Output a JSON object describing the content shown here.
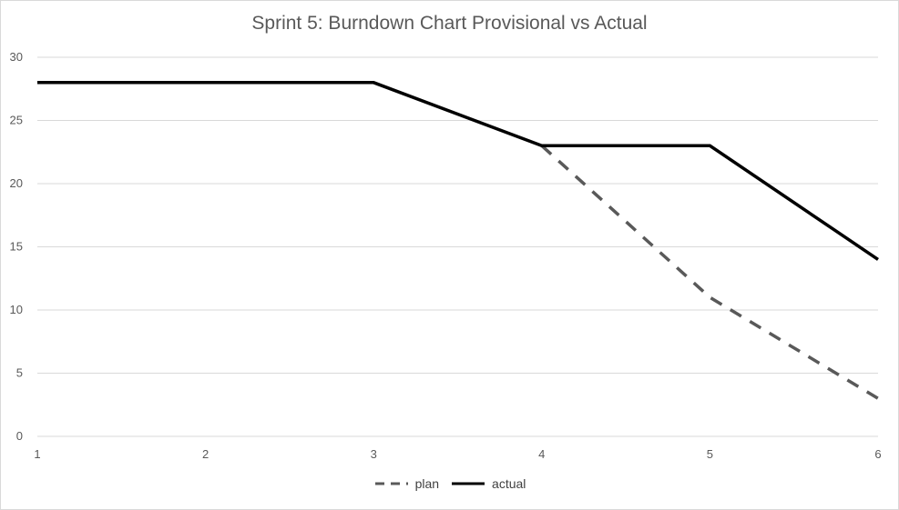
{
  "chart_data": {
    "type": "line",
    "title": "Sprint 5: Burndown Chart Provisional vs Actual",
    "x": [
      1,
      2,
      3,
      4,
      5,
      6
    ],
    "xticks": [
      "1",
      "2",
      "3",
      "4",
      "5",
      "6"
    ],
    "yticks": [
      "0",
      "5",
      "10",
      "15",
      "20",
      "25",
      "30"
    ],
    "xlim": [
      1,
      6
    ],
    "ylim": [
      0,
      30
    ],
    "grid": true,
    "legend_position": "bottom",
    "series": [
      {
        "name": "plan",
        "x": [
          4,
          5,
          6
        ],
        "values": [
          23,
          11,
          3
        ],
        "color": "#595959",
        "style": "dashed"
      },
      {
        "name": "actual",
        "x": [
          1,
          2,
          3,
          4,
          5,
          6
        ],
        "values": [
          28,
          28,
          28,
          23,
          23,
          14
        ],
        "color": "#000000",
        "style": "solid"
      }
    ]
  }
}
